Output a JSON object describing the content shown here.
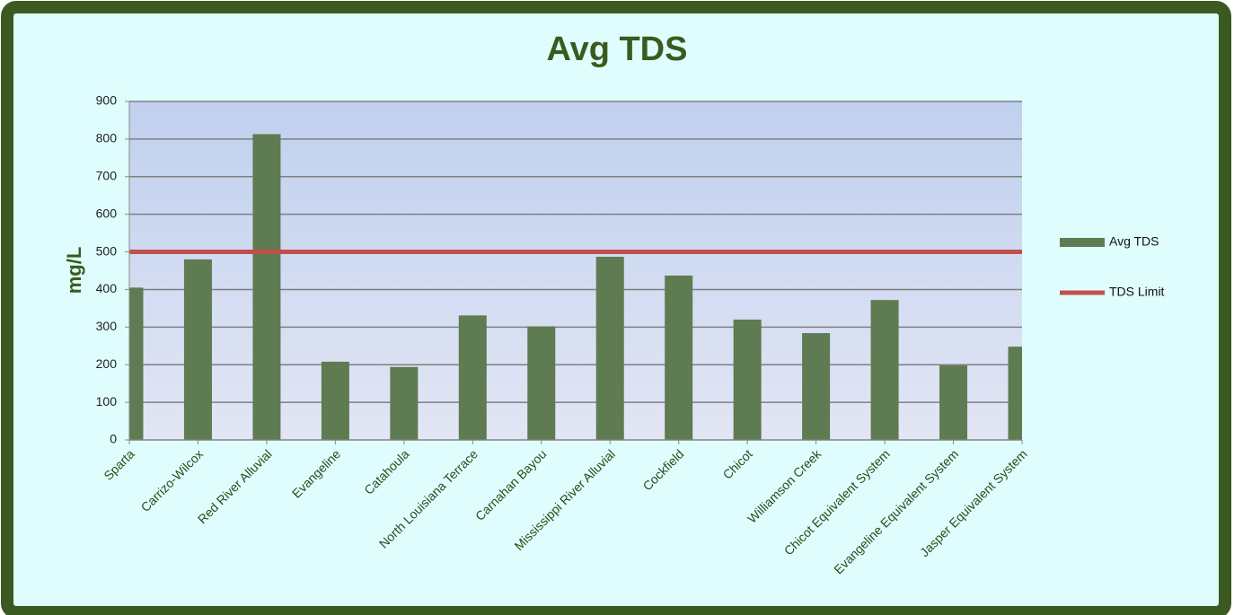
{
  "chart_data": {
    "type": "bar",
    "title": "Avg TDS",
    "y_label": "mg/L",
    "categories": [
      "Sparta",
      "Carrizo-Wilcox",
      "Red River Alluvial",
      "Evangeline",
      "Catahoula",
      "North Louisiana Terrace",
      "Carnahan Bayou",
      "Mississippi River Alluvial",
      "Cockfield",
      "Chicot",
      "Williamson Creek",
      "Chicot Equivalent System",
      "Evangeline Equivalent System",
      "Jasper Equivalent System"
    ],
    "series": [
      {
        "name": "Avg TDS",
        "type": "bar",
        "color": "#5f7b52",
        "values": [
          405,
          480,
          813,
          208,
          194,
          331,
          302,
          487,
          437,
          320,
          284,
          372,
          198,
          248
        ]
      },
      {
        "name": "TDS Limit",
        "type": "line",
        "color": "#c0504d",
        "values": [
          500,
          500,
          500,
          500,
          500,
          500,
          500,
          500,
          500,
          500,
          500,
          500,
          500,
          500
        ]
      }
    ],
    "ylim": [
      0,
      900
    ],
    "yticks": [
      0,
      100,
      200,
      300,
      400,
      500,
      600,
      700,
      800,
      900
    ],
    "grid": true,
    "legend": "right"
  }
}
